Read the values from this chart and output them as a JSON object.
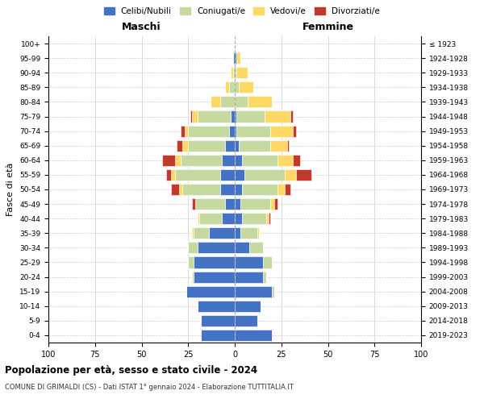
{
  "age_groups": [
    "0-4",
    "5-9",
    "10-14",
    "15-19",
    "20-24",
    "25-29",
    "30-34",
    "35-39",
    "40-44",
    "45-49",
    "50-54",
    "55-59",
    "60-64",
    "65-69",
    "70-74",
    "75-79",
    "80-84",
    "85-89",
    "90-94",
    "95-99",
    "100+"
  ],
  "birth_years": [
    "2019-2023",
    "2014-2018",
    "2009-2013",
    "2004-2008",
    "1999-2003",
    "1994-1998",
    "1989-1993",
    "1984-1988",
    "1979-1983",
    "1974-1978",
    "1969-1973",
    "1964-1968",
    "1959-1963",
    "1954-1958",
    "1949-1953",
    "1944-1948",
    "1939-1943",
    "1934-1938",
    "1929-1933",
    "1924-1928",
    "≤ 1923"
  ],
  "maschi": {
    "celibi": [
      18,
      18,
      20,
      26,
      22,
      22,
      20,
      14,
      7,
      5,
      8,
      8,
      7,
      5,
      3,
      2,
      0,
      0,
      0,
      1,
      0
    ],
    "coniugati": [
      0,
      0,
      0,
      0,
      1,
      3,
      5,
      8,
      12,
      16,
      20,
      24,
      22,
      20,
      22,
      18,
      8,
      3,
      1,
      0,
      0
    ],
    "vedovi": [
      0,
      0,
      0,
      0,
      0,
      0,
      0,
      1,
      1,
      0,
      2,
      2,
      3,
      3,
      2,
      3,
      5,
      2,
      1,
      0,
      0
    ],
    "divorziati": [
      0,
      0,
      0,
      0,
      0,
      0,
      0,
      0,
      0,
      2,
      4,
      3,
      7,
      3,
      2,
      1,
      0,
      0,
      0,
      0,
      0
    ]
  },
  "femmine": {
    "nubili": [
      20,
      12,
      14,
      20,
      15,
      15,
      8,
      3,
      4,
      3,
      4,
      5,
      4,
      2,
      1,
      1,
      0,
      0,
      0,
      1,
      0
    ],
    "coniugate": [
      0,
      0,
      0,
      1,
      2,
      5,
      7,
      9,
      13,
      16,
      19,
      22,
      19,
      17,
      18,
      15,
      7,
      2,
      1,
      0,
      0
    ],
    "vedove": [
      0,
      0,
      0,
      0,
      0,
      0,
      0,
      1,
      1,
      2,
      4,
      6,
      8,
      9,
      12,
      14,
      13,
      8,
      6,
      2,
      0
    ],
    "divorziate": [
      0,
      0,
      0,
      0,
      0,
      0,
      0,
      0,
      1,
      2,
      3,
      8,
      4,
      1,
      2,
      1,
      0,
      0,
      0,
      0,
      0
    ]
  },
  "colors": {
    "celibi": "#4472C4",
    "coniugati": "#c5d9a0",
    "vedovi": "#FFD966",
    "divorziati": "#C0392B"
  },
  "xlim": 100,
  "title": "Popolazione per età, sesso e stato civile - 2024",
  "subtitle": "COMUNE DI GRIMALDI (CS) - Dati ISTAT 1° gennaio 2024 - Elaborazione TUTTITALIA.IT",
  "ylabel_left": "Fasce di età",
  "xlabel_maschi": "Maschi",
  "xlabel_femmine": "Femmine",
  "legend_labels": [
    "Celibi/Nubili",
    "Coniugati/e",
    "Vedovi/e",
    "Divorziati/e"
  ],
  "background_color": "#ffffff",
  "grid_color": "#cccccc"
}
